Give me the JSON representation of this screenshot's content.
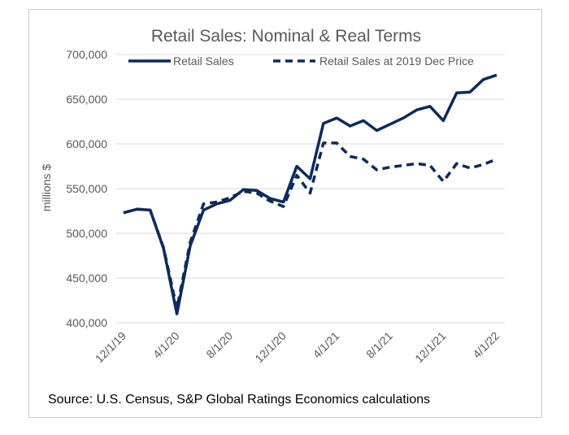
{
  "chart_data": {
    "type": "line",
    "title": "Retail Sales: Nominal & Real Terms",
    "ylabel": "millions $",
    "xlabel": "",
    "ylim": [
      400000,
      700000
    ],
    "yticks": [
      "700,000",
      "650,000",
      "600,000",
      "550,000",
      "500,000",
      "450,000",
      "400,000"
    ],
    "ytick_values": [
      700000,
      650000,
      600000,
      550000,
      500000,
      450000,
      400000
    ],
    "xtick_labels": [
      "12/1/19",
      "4/1/20",
      "8/1/20",
      "12/1/20",
      "4/1/21",
      "8/1/21",
      "12/1/21",
      "4/1/22"
    ],
    "x": [
      "12/1/19",
      "1/1/20",
      "2/1/20",
      "3/1/20",
      "4/1/20",
      "5/1/20",
      "6/1/20",
      "7/1/20",
      "8/1/20",
      "9/1/20",
      "10/1/20",
      "11/1/20",
      "12/1/20",
      "1/1/21",
      "2/1/21",
      "3/1/21",
      "4/1/21",
      "5/1/21",
      "6/1/21",
      "7/1/21",
      "8/1/21",
      "9/1/21",
      "10/1/21",
      "11/1/21",
      "12/1/21",
      "1/1/22",
      "2/1/22",
      "3/1/22",
      "4/1/22"
    ],
    "series": [
      {
        "name": "Retail Sales",
        "style": "solid",
        "color": "#0c2a5b",
        "values": [
          523000,
          527000,
          526000,
          483000,
          410000,
          486000,
          526000,
          533000,
          537000,
          549000,
          548000,
          539000,
          535000,
          575000,
          561000,
          623000,
          629000,
          620000,
          626000,
          615000,
          622000,
          629000,
          638000,
          642000,
          626000,
          657000,
          658000,
          672000,
          677000
        ]
      },
      {
        "name": "Retail Sales at 2019 Dec Price",
        "style": "dashed",
        "color": "#0c2a5b",
        "values": [
          523000,
          527000,
          526000,
          484000,
          416000,
          490000,
          533000,
          535000,
          540000,
          547000,
          545000,
          536000,
          530000,
          565000,
          545000,
          601000,
          601000,
          586000,
          583000,
          571000,
          574000,
          576000,
          578000,
          576000,
          558000,
          578000,
          573000,
          577000,
          583000
        ]
      }
    ],
    "legend": "top",
    "grid": true
  },
  "footer": {
    "source": "Source: U.S. Census, S&P Global Ratings Economics calculations"
  }
}
